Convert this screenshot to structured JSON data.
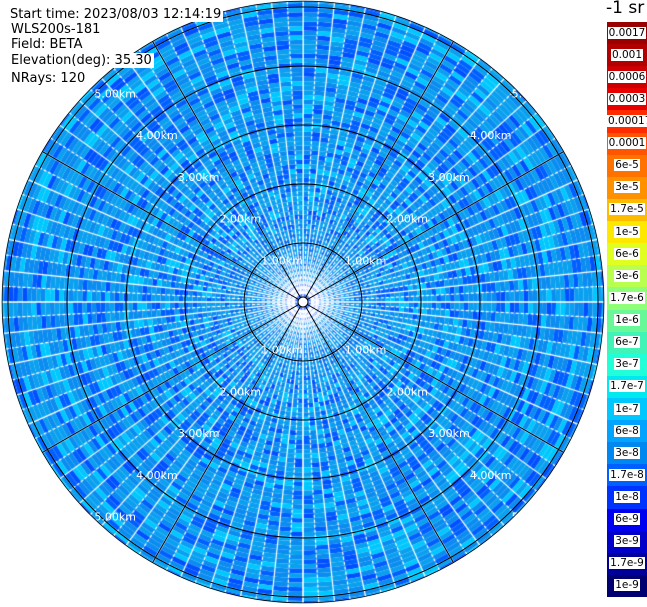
{
  "info": {
    "start_time": "Start time: 2023/08/03 12:14:19",
    "instrument": "WLS200s-181",
    "field": "Field: BETA",
    "elevation": "Elevation(deg): 35.30",
    "nrays": "NRays: 120"
  },
  "chart_data": {
    "type": "heatmap",
    "subtype": "polar-ppi",
    "n_rays": 120,
    "elevation_deg": 35.3,
    "field": "BETA",
    "range_rings_km": [
      1,
      2,
      3,
      4,
      5
    ],
    "range_ring_labels": [
      "1.00km",
      "2.00km",
      "3.00km",
      "4.00km",
      "5.00km"
    ],
    "azimuth_spokes_deg": [
      0,
      30,
      60,
      90,
      120,
      150,
      180,
      210,
      240,
      270,
      300,
      330
    ],
    "max_range_km": 5.1,
    "colorbar": {
      "units": "-1 sr",
      "scale": "log",
      "labels": [
        "0.0017",
        "0.001",
        "0.0006",
        "0.0003",
        "0.00017",
        "0.0001",
        "6e-5",
        "3e-5",
        "1.7e-5",
        "1e-5",
        "6e-6",
        "3e-6",
        "1.7e-6",
        "1e-6",
        "6e-7",
        "3e-7",
        "1.7e-7",
        "1e-7",
        "6e-8",
        "3e-8",
        "1.7e-8",
        "1e-8",
        "6e-9",
        "3e-9",
        "1.7e-9",
        "1e-9"
      ],
      "colors": [
        "#990000",
        "#b00000",
        "#cc0000",
        "#e80000",
        "#ff2a00",
        "#ff5500",
        "#ff7200",
        "#ff9000",
        "#ffbb00",
        "#ffe800",
        "#e0ff20",
        "#b8ff50",
        "#90ff78",
        "#68f898",
        "#40f4b8",
        "#20ffd8",
        "#00e8f0",
        "#00c8ff",
        "#00a4ff",
        "#0088f0",
        "#0060ff",
        "#0032ff",
        "#0000f0",
        "#0000c8",
        "#000098",
        "#000070"
      ]
    },
    "field_dominant_colors": [
      "#0aa0f0",
      "#0a8cf0",
      "#0070f0",
      "#0060ff",
      "#00c8ff",
      "#0050ff"
    ]
  }
}
